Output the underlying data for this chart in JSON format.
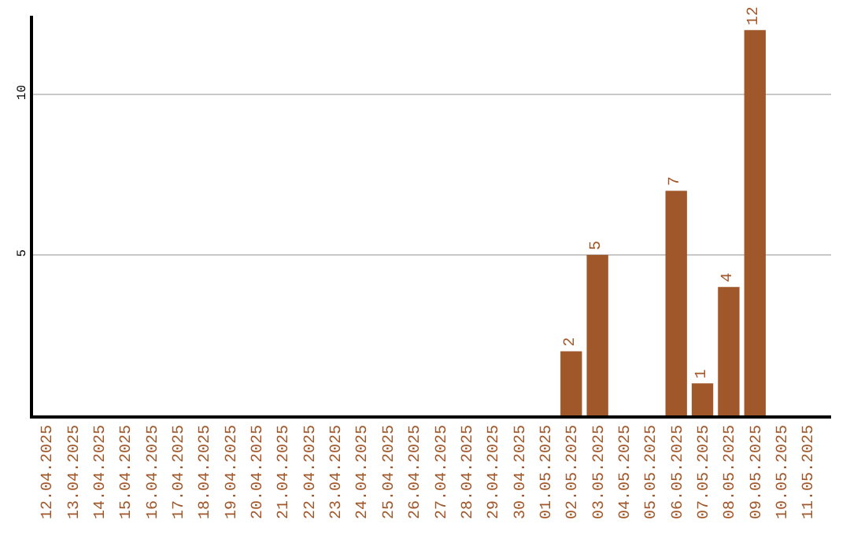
{
  "chart_data": {
    "type": "bar",
    "categories": [
      "12.04.2025",
      "13.04.2025",
      "14.04.2025",
      "15.04.2025",
      "16.04.2025",
      "17.04.2025",
      "18.04.2025",
      "19.04.2025",
      "20.04.2025",
      "21.04.2025",
      "22.04.2025",
      "23.04.2025",
      "24.04.2025",
      "25.04.2025",
      "26.04.2025",
      "27.04.2025",
      "28.04.2025",
      "29.04.2025",
      "30.04.2025",
      "01.05.2025",
      "02.05.2025",
      "03.05.2025",
      "04.05.2025",
      "05.05.2025",
      "06.05.2025",
      "07.05.2025",
      "08.05.2025",
      "09.05.2025",
      "10.05.2025",
      "11.05.2025"
    ],
    "values": [
      0,
      0,
      0,
      0,
      0,
      0,
      0,
      0,
      0,
      0,
      0,
      0,
      0,
      0,
      0,
      0,
      0,
      0,
      0,
      0,
      2,
      5,
      0,
      0,
      7,
      1,
      4,
      12,
      0,
      0
    ],
    "value_labels": [
      null,
      null,
      null,
      null,
      null,
      null,
      null,
      null,
      null,
      null,
      null,
      null,
      null,
      null,
      null,
      null,
      null,
      null,
      null,
      null,
      "2",
      "5",
      null,
      null,
      "7",
      "1",
      "4",
      "12",
      null,
      null
    ],
    "color": "#a0572a",
    "ylim": [
      0,
      12.45
    ],
    "yticks": [
      5,
      10
    ],
    "grid": "y",
    "legend": false
  }
}
